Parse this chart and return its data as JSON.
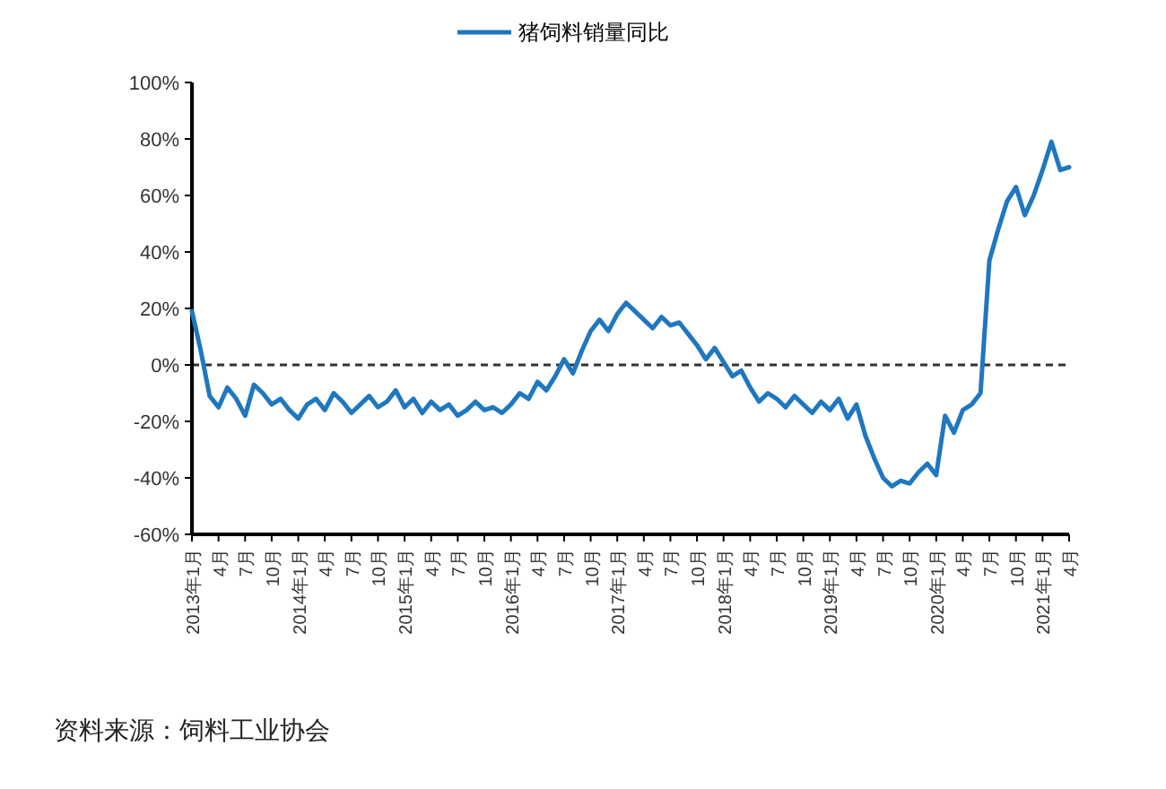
{
  "chart_data": {
    "type": "line",
    "legend": "top",
    "marker": "none",
    "line_style": "solid",
    "categories": [
      "2013年1月",
      null,
      null,
      "4月",
      null,
      null,
      "7月",
      null,
      null,
      "10月",
      null,
      null,
      "2014年1月",
      null,
      null,
      "4月",
      null,
      null,
      "7月",
      null,
      null,
      "10月",
      null,
      null,
      "2015年1月",
      null,
      null,
      "4月",
      null,
      null,
      "7月",
      null,
      null,
      "10月",
      null,
      null,
      "2016年1月",
      null,
      null,
      "4月",
      null,
      null,
      "7月",
      null,
      null,
      "10月",
      null,
      null,
      "2017年1月",
      null,
      null,
      "4月",
      null,
      null,
      "7月",
      null,
      null,
      "10月",
      null,
      null,
      "2018年1月",
      null,
      null,
      "4月",
      null,
      null,
      "7月",
      null,
      null,
      "10月",
      null,
      null,
      "2019年1月",
      null,
      null,
      "4月",
      null,
      null,
      "7月",
      null,
      null,
      "10月",
      null,
      null,
      "2020年1月",
      null,
      null,
      "4月",
      null,
      null,
      "7月",
      null,
      null,
      "10月",
      null,
      null,
      "2021年1月",
      null,
      null,
      "4月"
    ],
    "series": [
      {
        "name": "猪饲料销量同比",
        "color": "#1f77c0",
        "values": [
          19,
          5,
          -11,
          -15,
          -8,
          -12,
          -18,
          -7,
          -10,
          -14,
          -12,
          -16,
          -19,
          -14,
          -12,
          -16,
          -10,
          -13,
          -17,
          -14,
          -11,
          -15,
          -13,
          -9,
          -15,
          -12,
          -17,
          -13,
          -16,
          -14,
          -18,
          -16,
          -13,
          -16,
          -15,
          -17,
          -14,
          -10,
          -12,
          -6,
          -9,
          -4,
          2,
          -3,
          5,
          12,
          16,
          12,
          18,
          22,
          19,
          16,
          13,
          17,
          14,
          15,
          11,
          7,
          2,
          6,
          1,
          -4,
          -2,
          -8,
          -13,
          -10,
          -12,
          -15,
          -11,
          -14,
          -17,
          -13,
          -16,
          -12,
          -19,
          -14,
          -25,
          -33,
          -40,
          -43,
          -41,
          -42,
          -38,
          -35,
          -39,
          -18,
          -24,
          -16,
          -14,
          -10,
          37,
          48,
          58,
          63,
          53,
          60,
          69,
          79,
          69,
          70
        ]
      }
    ],
    "ylim": [
      -60,
      100
    ],
    "yticks": [
      {
        "value": -60,
        "label": "-60%"
      },
      {
        "value": -40,
        "label": "-40%"
      },
      {
        "value": -20,
        "label": "-20%"
      },
      {
        "value": 0,
        "label": "0%"
      },
      {
        "value": 20,
        "label": "20%"
      },
      {
        "value": 40,
        "label": "40%"
      },
      {
        "value": 60,
        "label": "60%"
      },
      {
        "value": 80,
        "label": "80%"
      },
      {
        "value": 100,
        "label": "100%"
      }
    ],
    "ref_lines": [
      {
        "axis": "y",
        "value": 0,
        "color": "#333333",
        "line_style": "dashed"
      }
    ],
    "annotations": [
      "资料来源：饲料工业协会"
    ]
  }
}
